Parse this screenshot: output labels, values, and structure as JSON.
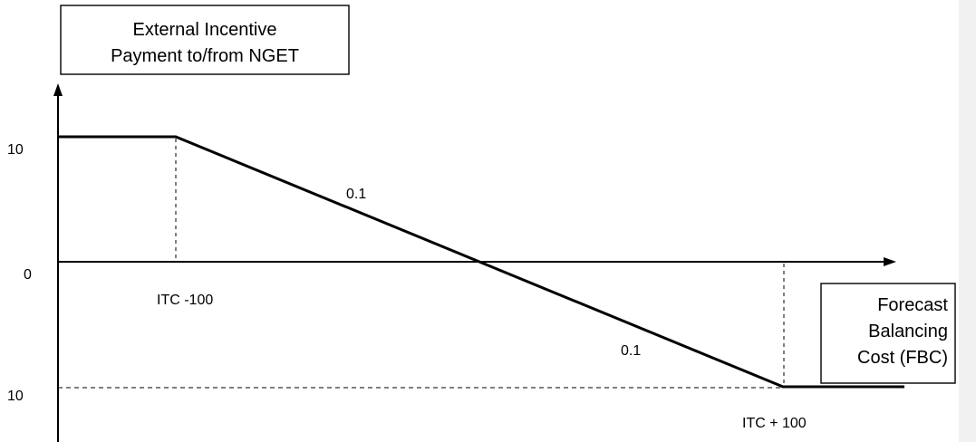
{
  "y_axis_box": {
    "line1": "External Incentive",
    "line2": "Payment to/from NGET"
  },
  "x_axis_box": {
    "line1": "Forecast",
    "line2": "Balancing",
    "line3": "Cost (FBC)"
  },
  "y_ticks": {
    "top": "10",
    "zero": "0",
    "bottom": "10"
  },
  "x_ticks": {
    "left": "ITC -100",
    "right": "ITC + 100"
  },
  "slope_labels": {
    "upper": "0.1",
    "lower": "0.1"
  },
  "colors": {
    "line": "#000000",
    "side_strip": "#f1f1f1"
  }
}
